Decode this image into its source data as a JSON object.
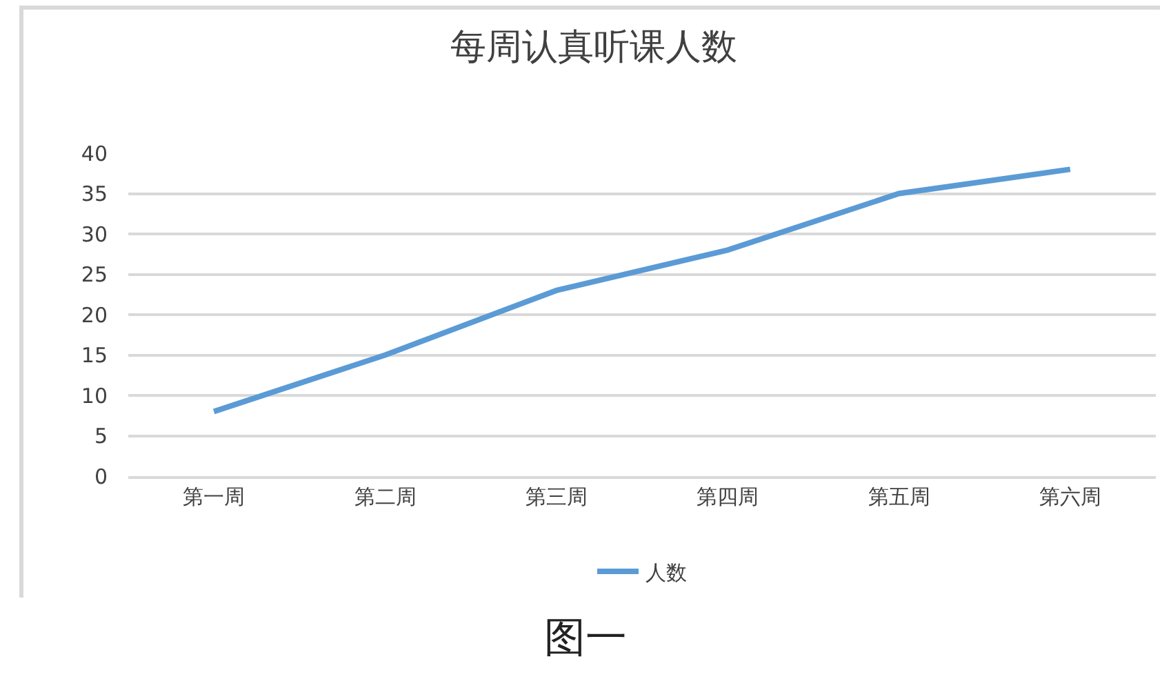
{
  "chart_data": {
    "type": "line",
    "title": "每周认真听课人数",
    "categories": [
      "第一周",
      "第二周",
      "第三周",
      "第四周",
      "第五周",
      "第六周"
    ],
    "series": [
      {
        "name": "人数",
        "color": "#5b9bd5",
        "values": [
          8,
          15,
          23,
          28,
          35,
          38
        ]
      }
    ],
    "ylim": [
      0,
      40
    ],
    "yticks": [
      0,
      5,
      10,
      15,
      20,
      25,
      30,
      35,
      40
    ],
    "grid": "y",
    "legend": "bottom",
    "marker": "none",
    "line_style": "solid",
    "annotations": [
      "图一"
    ]
  }
}
